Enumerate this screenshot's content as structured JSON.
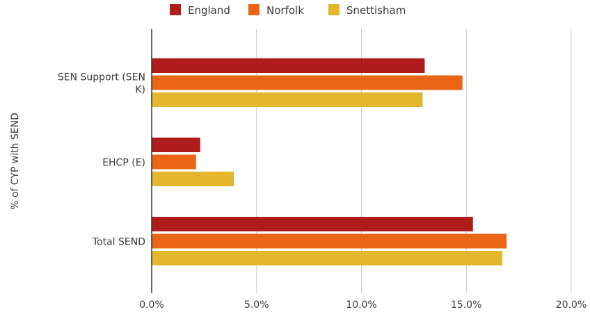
{
  "chart_data": {
    "type": "bar",
    "orientation": "horizontal",
    "title": "",
    "xlabel": "",
    "ylabel": "% of CYP with SEND",
    "xlim": [
      0,
      20
    ],
    "x_ticks": [
      "0.0%",
      "5.0%",
      "10.0%",
      "15.0%",
      "20.0%"
    ],
    "categories": [
      [
        "SEN Support (SEN",
        "K)"
      ],
      [
        "EHCP (E)"
      ],
      [
        "Total SEND"
      ]
    ],
    "series": [
      {
        "name": "England",
        "color": "#b01c1c",
        "values": [
          13.0,
          2.3,
          15.3
        ]
      },
      {
        "name": "Norfolk",
        "color": "#ea6616",
        "values": [
          14.8,
          2.1,
          16.9
        ]
      },
      {
        "name": "Snettisham",
        "color": "#e3b62c",
        "values": [
          12.9,
          3.9,
          16.7
        ]
      }
    ],
    "grid": true,
    "legend_position": "top"
  }
}
